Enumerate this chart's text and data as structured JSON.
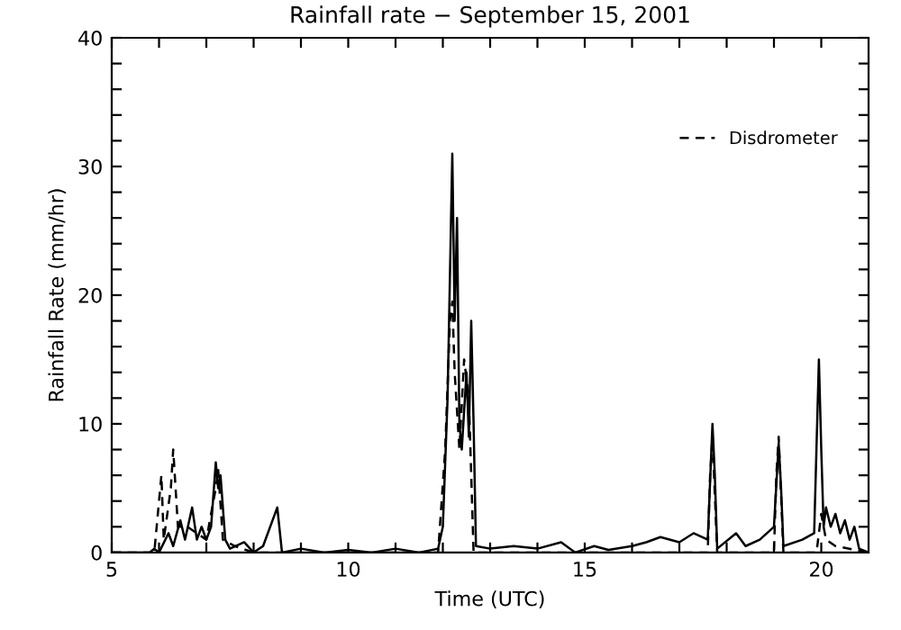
{
  "chart_data": {
    "type": "line",
    "title": "Rainfall rate − September 15, 2001",
    "xlabel": "Time (UTC)",
    "ylabel": "Rainfall Rate (mm/hr)",
    "xlim": [
      5,
      21
    ],
    "ylim": [
      0,
      40
    ],
    "xticks": [
      5,
      {
        "value": 6,
        "label": null
      },
      {
        "value": 7,
        "label": null
      },
      {
        "value": 8,
        "label": null
      },
      {
        "value": 9,
        "label": null
      },
      10,
      {
        "value": 11,
        "label": null
      },
      {
        "value": 12,
        "label": null
      },
      {
        "value": 13,
        "label": null
      },
      {
        "value": 14,
        "label": null
      },
      15,
      {
        "value": 16,
        "label": null
      },
      {
        "value": 17,
        "label": null
      },
      {
        "value": 18,
        "label": null
      },
      {
        "value": 19,
        "label": null
      },
      20
    ],
    "yticks": [
      0,
      {
        "value": 2,
        "label": null
      },
      {
        "value": 4,
        "label": null
      },
      {
        "value": 6,
        "label": null
      },
      {
        "value": 8,
        "label": null
      },
      10,
      {
        "value": 12,
        "label": null
      },
      {
        "value": 14,
        "label": null
      },
      {
        "value": 16,
        "label": null
      },
      {
        "value": 18,
        "label": null
      },
      20,
      {
        "value": 22,
        "label": null
      },
      {
        "value": 24,
        "label": null
      },
      {
        "value": 26,
        "label": null
      },
      {
        "value": 28,
        "label": null
      },
      30,
      {
        "value": 32,
        "label": null
      },
      {
        "value": 34,
        "label": null
      },
      {
        "value": 36,
        "label": null
      },
      {
        "value": 38,
        "label": null
      },
      40
    ],
    "grid": false,
    "legend": "top right",
    "marker": "none",
    "series": [
      {
        "color": "#000000",
        "line_style": "solid",
        "x": [
          5.0,
          5.8,
          5.9,
          6.0,
          6.2,
          6.3,
          6.45,
          6.55,
          6.7,
          6.8,
          6.9,
          7.0,
          7.1,
          7.2,
          7.25,
          7.3,
          7.4,
          7.5,
          7.8,
          8.0,
          8.2,
          8.5,
          8.6,
          9.0,
          9.5,
          10.0,
          10.5,
          11.0,
          11.5,
          11.9,
          12.0,
          12.1,
          12.2,
          12.25,
          12.3,
          12.35,
          12.4,
          12.5,
          12.55,
          12.6,
          12.65,
          12.7,
          13.0,
          13.5,
          14.0,
          14.5,
          14.8,
          15.2,
          15.5,
          16.0,
          16.3,
          16.6,
          17.0,
          17.3,
          17.6,
          17.7,
          17.75,
          17.8,
          18.2,
          18.4,
          18.7,
          19.0,
          19.1,
          19.15,
          19.2,
          19.6,
          19.85,
          19.95,
          20.0,
          20.05,
          20.1,
          20.2,
          20.3,
          20.4,
          20.5,
          20.6,
          20.7,
          20.8,
          21.0
        ],
        "values": [
          0,
          0,
          0.3,
          0,
          1.5,
          0.5,
          2.5,
          1,
          3.5,
          1,
          2,
          1,
          2,
          7,
          5,
          6,
          1,
          0.3,
          0.8,
          0,
          0.5,
          3.5,
          0,
          0.3,
          0,
          0.2,
          0,
          0.3,
          0,
          0.3,
          2,
          12,
          31,
          18,
          26,
          10,
          8,
          14,
          9,
          18,
          10,
          0.5,
          0.3,
          0.5,
          0.3,
          0.8,
          0,
          0.5,
          0.2,
          0.5,
          0.8,
          1.2,
          0.8,
          1.5,
          1,
          10,
          6,
          0.3,
          1.5,
          0.5,
          1,
          2,
          8.5,
          5,
          0.5,
          1,
          1.5,
          15,
          8,
          2,
          3.5,
          2,
          3,
          1.5,
          2.5,
          1,
          2,
          0.3,
          0
        ]
      },
      {
        "name": "Disdrometer",
        "color": "#000000",
        "line_style": "dashed",
        "x": [
          5.0,
          5.9,
          6.0,
          6.05,
          6.1,
          6.25,
          6.3,
          6.4,
          6.6,
          6.8,
          7.0,
          7.2,
          7.25,
          7.35,
          7.6,
          8.0,
          8.5,
          11.9,
          12.05,
          12.15,
          12.2,
          12.25,
          12.35,
          12.45,
          12.55,
          12.6,
          12.65,
          15.0,
          17.6,
          17.65,
          17.7,
          17.8,
          19.0,
          19.05,
          19.1,
          19.2,
          19.9,
          20.0,
          20.1,
          20.3,
          21.0
        ],
        "values": [
          0,
          0,
          4,
          6,
          1,
          5,
          8,
          2,
          2,
          1.5,
          1,
          5,
          6.5,
          1,
          0.5,
          0,
          0,
          0,
          8,
          18,
          19.5,
          14,
          8,
          15,
          12,
          6,
          0,
          0,
          0,
          6,
          9,
          0,
          0,
          6,
          9,
          0,
          0,
          3,
          1,
          0.5,
          0
        ]
      }
    ]
  }
}
